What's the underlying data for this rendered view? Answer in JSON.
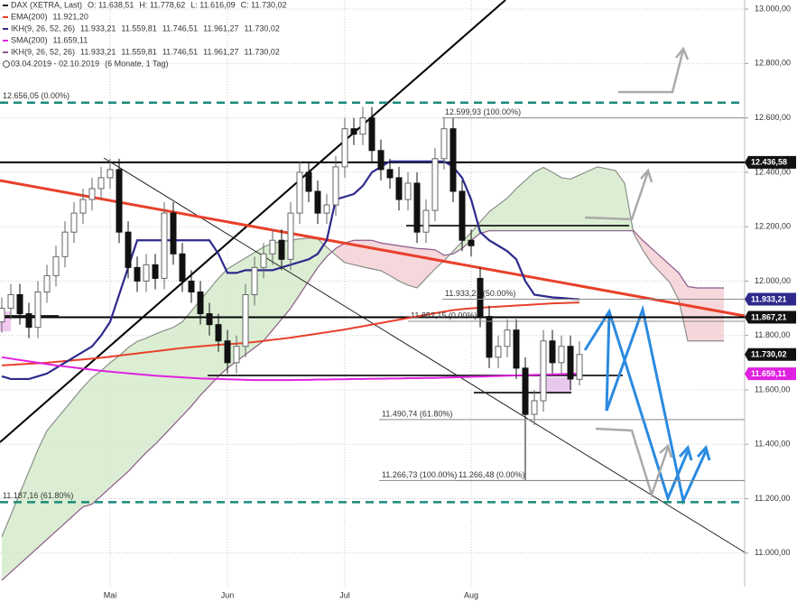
{
  "chart_data": {
    "type": "candlestick",
    "title": "DAX (XETRA, Last)",
    "header_values": [
      "O: 11.638,51",
      "H: 11.778,62",
      "L: 11.616,09",
      "C: 11.730,02"
    ],
    "date_range": "03.04.2019 - 02.10.2019",
    "period": "(6 Monate, 1 Tag)",
    "ylim": [
      10850,
      13050
    ],
    "yticks": [
      {
        "value": 11000,
        "label": "11.000,00"
      },
      {
        "value": 11200,
        "label": "11.200,00"
      },
      {
        "value": 11400,
        "label": "11.400,00"
      },
      {
        "value": 11600,
        "label": "11.600,00"
      },
      {
        "value": 11800,
        "label": "11.800,00"
      },
      {
        "value": 12000,
        "label": "12.000,00"
      },
      {
        "value": 12200,
        "label": "12.200,00"
      },
      {
        "value": 12400,
        "label": "12.400,00"
      },
      {
        "value": 12600,
        "label": "12.600,00"
      },
      {
        "value": 12800,
        "label": "12.800,00"
      },
      {
        "value": 13000,
        "label": "13.000,00"
      }
    ],
    "grid": true,
    "categories": [
      null,
      null,
      null,
      null,
      null,
      null,
      null,
      null,
      null,
      null,
      null,
      null,
      "Mai",
      null,
      null,
      null,
      null,
      null,
      null,
      null,
      null,
      null,
      null,
      null,
      null,
      "Jun",
      null,
      null,
      null,
      null,
      null,
      null,
      null,
      null,
      null,
      null,
      null,
      null,
      "Jul",
      null,
      null,
      null,
      null,
      null,
      null,
      null,
      null,
      null,
      null,
      null,
      null,
      null,
      "Aug",
      null,
      null,
      null,
      null,
      null,
      null,
      null,
      null,
      null,
      null,
      null,
      null,
      null,
      null,
      null,
      null,
      null,
      null,
      null,
      null,
      null,
      null,
      null,
      null,
      null,
      null,
      null,
      null
    ],
    "candles": {
      "up_color": "#ffffff",
      "down_color": "#111111",
      "open": [
        11850,
        11900,
        11950,
        11880,
        11830,
        11960,
        12020,
        12090,
        12180,
        12250,
        12300,
        12340,
        12380,
        12410,
        12180,
        12050,
        12000,
        12060,
        12010,
        12250,
        12100,
        12000,
        11960,
        11880,
        11840,
        11780,
        11700,
        11760,
        11950,
        12050,
        12100,
        12150,
        12080,
        12250,
        12400,
        12330,
        12250,
        12280,
        12420,
        12560,
        12540,
        12600,
        12480,
        12410,
        12380,
        12300,
        12360,
        12180,
        12260,
        12450,
        12560,
        12330,
        12150,
        12010,
        11870,
        11720,
        11760,
        11820,
        11680,
        11510,
        11560,
        11780,
        11700,
        11760,
        11638.51,
        null,
        null,
        null,
        null,
        null,
        null,
        null,
        null,
        null,
        null,
        null,
        null,
        null,
        null,
        null,
        null
      ],
      "high": [
        11940,
        11990,
        11990,
        11920,
        12000,
        12060,
        12130,
        12220,
        12290,
        12340,
        12380,
        12420,
        12450,
        12450,
        12220,
        12090,
        12100,
        12100,
        12290,
        12290,
        12140,
        12040,
        12000,
        11920,
        11880,
        11820,
        11800,
        11990,
        12090,
        12140,
        12190,
        12190,
        12290,
        12440,
        12440,
        12370,
        12320,
        12460,
        12600,
        12600,
        12640,
        12640,
        12520,
        12450,
        12420,
        12400,
        12400,
        12300,
        12490,
        12599.93,
        12600,
        12370,
        12190,
        12050,
        11910,
        11800,
        11860,
        11860,
        11720,
        11600,
        11820,
        11820,
        11800,
        11800,
        11778.62,
        null,
        null,
        null,
        null,
        null,
        null,
        null,
        null,
        null,
        null,
        null,
        null,
        null,
        null,
        null,
        null
      ],
      "low": [
        11810,
        11860,
        11840,
        11790,
        11790,
        11920,
        11980,
        12050,
        12140,
        12210,
        12260,
        12300,
        12340,
        12140,
        12010,
        11960,
        11960,
        11970,
        11970,
        12060,
        11960,
        11920,
        11840,
        11800,
        11740,
        11660,
        11660,
        11720,
        11910,
        12010,
        12060,
        12040,
        12040,
        12210,
        12290,
        12210,
        12210,
        12240,
        12380,
        12500,
        12500,
        12440,
        12370,
        12340,
        12260,
        12260,
        12140,
        12140,
        12220,
        12410,
        12290,
        12110,
        12090,
        11830,
        11680,
        11680,
        11720,
        11640,
        11266.73,
        11470,
        11520,
        11660,
        11660,
        11600,
        11616.09,
        null,
        null,
        null,
        null,
        null,
        null,
        null,
        null,
        null,
        null,
        null,
        null,
        null,
        null,
        null,
        null
      ],
      "close": [
        11900,
        11950,
        11880,
        11830,
        11960,
        12020,
        12090,
        12180,
        12250,
        12300,
        12340,
        12380,
        12410,
        12180,
        12050,
        12000,
        12060,
        12010,
        12250,
        12100,
        12000,
        11960,
        11880,
        11840,
        11780,
        11700,
        11760,
        11950,
        12050,
        12100,
        12150,
        12080,
        12250,
        12400,
        12330,
        12250,
        12280,
        12420,
        12560,
        12540,
        12600,
        12480,
        12410,
        12380,
        12300,
        12360,
        12180,
        12260,
        12450,
        12560,
        12330,
        12150,
        12130,
        11870,
        11720,
        11760,
        11820,
        11680,
        11510,
        11560,
        11780,
        11700,
        11760,
        11640,
        11730.02,
        null,
        null,
        null,
        null,
        null,
        null,
        null,
        null,
        null,
        null,
        null,
        null,
        null,
        null,
        null,
        null
      ]
    },
    "series": [
      {
        "name": "EMA(200)",
        "color": "#e8402a",
        "legend_values": [
          "11.921,20"
        ],
        "values": [
          11690,
          11692,
          11694,
          11696,
          11698,
          11700,
          11703,
          11706,
          11709,
          11712,
          11715,
          11718,
          11722,
          11726,
          11730,
          11734,
          11738,
          11742,
          11746,
          11750,
          11754,
          11757,
          11760,
          11763,
          11766,
          11768,
          11770,
          11773,
          11776,
          11780,
          11784,
          11788,
          11792,
          11797,
          11802,
          11807,
          11812,
          11817,
          11822,
          11828,
          11834,
          11840,
          11846,
          11852,
          11858,
          11864,
          11870,
          11876,
          11882,
          11888,
          11893,
          11897,
          11900,
          11902,
          11904,
          11906,
          11908,
          11910,
          11912,
          11914,
          11916,
          11918,
          11919,
          11920,
          11921.2,
          null,
          null,
          null,
          null,
          null,
          null,
          null,
          null,
          null,
          null,
          null,
          null,
          null,
          null,
          null,
          null
        ]
      },
      {
        "name": "IKH(9, 26, 52, 26)",
        "color": "#2e2a8c",
        "legend_values": [
          "11.933,21",
          "11.559,81",
          "11.746,51",
          "11.961,27",
          "11.730,02"
        ],
        "values": [
          11650,
          11640,
          11640,
          11640,
          11650,
          11660,
          11680,
          11700,
          11720,
          11740,
          11760,
          11800,
          11850,
          11950,
          12050,
          12150,
          12150,
          12150,
          12150,
          12150,
          12150,
          12150,
          12150,
          12150,
          12100,
          12030,
          12030,
          12040,
          12040,
          12040,
          12040,
          12050,
          12060,
          12070,
          12080,
          12100,
          12150,
          12300,
          12310,
          12320,
          12350,
          12400,
          12420,
          12440,
          12440,
          12440,
          12440,
          12440,
          12440,
          12440,
          12420,
          12380,
          12300,
          12180,
          12150,
          12130,
          12110,
          12080,
          12000,
          11950,
          11945,
          11940,
          11938,
          11935,
          11933.21,
          null,
          null,
          null,
          null,
          null,
          null,
          null,
          null,
          null,
          null,
          null,
          null,
          null,
          null,
          null,
          null
        ]
      },
      {
        "name": "SMA(200)",
        "color": "#e020e0",
        "legend_values": [
          "11.659,11"
        ],
        "values": [
          11720,
          11715,
          11710,
          11705,
          11700,
          11695,
          11690,
          11686,
          11682,
          11678,
          11674,
          11670,
          11667,
          11664,
          11661,
          11658,
          11655,
          11652,
          11650,
          11648,
          11646,
          11644,
          11642,
          11641,
          11640,
          11639,
          11638,
          11637,
          11636,
          11636,
          11636,
          11636,
          11636,
          11637,
          11637,
          11638,
          11638,
          11639,
          11639,
          11640,
          11640,
          11641,
          11641,
          11642,
          11642,
          11643,
          11643,
          11644,
          11644,
          11645,
          11646,
          11647,
          11648,
          11649,
          11650,
          11651,
          11652,
          11653,
          11654,
          11655,
          11656,
          11657,
          11658,
          11659,
          11659.11,
          null,
          null,
          null,
          null,
          null,
          null,
          null,
          null,
          null,
          null,
          null,
          null,
          null,
          null,
          null,
          null
        ]
      }
    ],
    "cloud": {
      "name": "IKH(9, 26, 52, 26)",
      "color": "#8a8f8a",
      "span_b_color": "#8a5a8a",
      "up_fill": "#cfe8c4",
      "down_fill": "#f3c9cf",
      "legend_color": "#3a8a3a",
      "legend_values": [
        "11.933,21",
        "11.559,81",
        "11.746,51",
        "11.961,27",
        "11.730,02"
      ],
      "span_a": [
        11060,
        11140,
        11220,
        11300,
        11380,
        11450,
        11490,
        11530,
        11570,
        11610,
        11645,
        11670,
        11700,
        11725,
        11755,
        11778,
        11790,
        11805,
        11818,
        11830,
        11850,
        11890,
        11930,
        11970,
        12010,
        12045,
        12065,
        12085,
        12105,
        12125,
        12140,
        12145,
        12150,
        12155,
        12158,
        12155,
        12125,
        12095,
        12068,
        12060,
        12052,
        12045,
        12038,
        12020,
        12000,
        11985,
        11975,
        12010,
        12045,
        12075,
        12110,
        12145,
        12178,
        12218,
        12255,
        12280,
        12305,
        12340,
        12370,
        12400,
        12418,
        12400,
        12380,
        12375,
        12390,
        12405,
        12420,
        12413,
        12406,
        12360,
        12175,
        12115,
        12065,
        12030,
        11995,
        11930,
        11780,
        11780,
        11780,
        11780,
        11780
      ],
      "span_b": [
        10900,
        10930,
        10960,
        10990,
        11020,
        11050,
        11080,
        11110,
        11140,
        11170,
        11180,
        11210,
        11240,
        11270,
        11300,
        11335,
        11370,
        11400,
        11435,
        11470,
        11505,
        11540,
        11580,
        11615,
        11650,
        11680,
        11705,
        11730,
        11755,
        11780,
        11820,
        11860,
        11900,
        11950,
        12000,
        12050,
        12090,
        12120,
        12140,
        12150,
        12150,
        12150,
        12140,
        12135,
        12130,
        12125,
        12120,
        12118,
        12115,
        12095,
        12100,
        12120,
        12150,
        12175,
        12185,
        12185,
        12185,
        12185,
        12185,
        12185,
        12185,
        12185,
        12185,
        12185,
        12185,
        12185,
        12185,
        12185,
        12185,
        12185,
        12185,
        12150,
        12120,
        12090,
        12060,
        12030,
        11980,
        11975,
        11975,
        11975,
        11975
      ]
    },
    "levels": [
      {
        "value": 12656.05,
        "style": "dashed",
        "color": "#1a8a7a",
        "label": "12.656,05 (0.00%)"
      },
      {
        "value": 12436.58,
        "style": "solid",
        "color": "#000000"
      },
      {
        "value": 11867.21,
        "style": "solid",
        "color": "#000000"
      },
      {
        "value": 11187.16,
        "style": "dashed",
        "color": "#1a8a7a",
        "label": "11.187,16 (61.80%)"
      }
    ],
    "fib_levels": [
      {
        "value": 12599.93,
        "label": "12.599,93 (100.00%)"
      },
      {
        "value": 11933.21,
        "label": "11.933,21 (50.00%)"
      },
      {
        "value": 11852.15,
        "label": "11.852,15 (0.00%)"
      },
      {
        "value": 11490.74,
        "label": "11.490,74 (61.80%)"
      },
      {
        "value": 11266.73,
        "label": "11.266,73 (100.00%)"
      },
      {
        "value": 11266.48,
        "label": "11.266,48 (0.00%)"
      }
    ],
    "price_tags": [
      {
        "value": 12436.58,
        "label": "12.436,58",
        "color": "#111111"
      },
      {
        "value": 11933.21,
        "label": "11.933,21",
        "color": "#2e2a8c"
      },
      {
        "value": 11867.21,
        "label": "11.867,21",
        "color": "#111111"
      },
      {
        "value": 11730.02,
        "label": "11.730,02",
        "color": "#111111"
      },
      {
        "value": 11659.11,
        "label": "11.659,11",
        "color": "#e020e0"
      }
    ]
  }
}
